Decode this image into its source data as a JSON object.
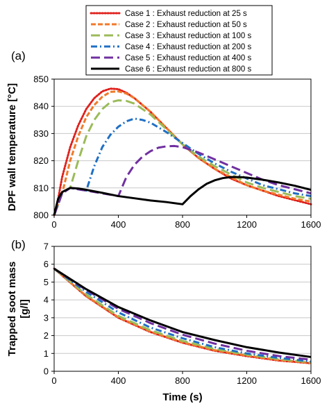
{
  "colors": {
    "case1": "#e0201b",
    "case2": "#f07a2a",
    "case3": "#9bbb59",
    "case4": "#1f6fc5",
    "case5": "#7030a0",
    "case6": "#000000",
    "grid": "#c8c8c8",
    "axis": "#000000"
  },
  "legend": [
    {
      "label": "Case 1 : Exhaust reduction at 25 s",
      "color": "#e0201b",
      "dash": "dotted"
    },
    {
      "label": "Case 2 : Exhaust reduction at 50 s",
      "color": "#f07a2a",
      "dash": "short-dash"
    },
    {
      "label": "Case 3 : Exhaust reduction at 100 s",
      "color": "#9bbb59",
      "dash": "long-dash"
    },
    {
      "label": "Case 4 : Exhaust reduction at 200 s",
      "color": "#1f6fc5",
      "dash": "dash-dot"
    },
    {
      "label": "Case 5 : Exhaust reduction at 400 s",
      "color": "#7030a0",
      "dash": "long-dash"
    },
    {
      "label": "Case 6 : Exhaust reduction at 800 s",
      "color": "#000000",
      "dash": "solid"
    }
  ],
  "chart_data": [
    {
      "type": "line",
      "panel_label": "(a)",
      "xlabel": "",
      "ylabel": "DPF wall temperature [°C]",
      "xlim": [
        0,
        1600
      ],
      "ylim": [
        800,
        850
      ],
      "x_ticks": [
        0,
        400,
        800,
        1200,
        1600
      ],
      "y_ticks": [
        800,
        810,
        820,
        830,
        840,
        850
      ],
      "grid": "horizontal",
      "legend_position": "top",
      "series": [
        {
          "name": "Case 1 : Exhaust reduction at 25 s",
          "x": [
            0,
            25,
            50,
            100,
            150,
            200,
            250,
            300,
            350,
            400,
            450,
            500,
            600,
            700,
            800,
            900,
            1000,
            1100,
            1200,
            1300,
            1400,
            1500,
            1600
          ],
          "y": [
            800,
            806,
            814,
            825,
            833,
            839,
            843,
            845.5,
            846.5,
            846.3,
            845,
            843,
            838,
            832,
            826,
            821,
            817,
            813.5,
            811,
            809,
            807,
            805.5,
            804
          ]
        },
        {
          "name": "Case 2 : Exhaust reduction at 50 s",
          "x": [
            0,
            50,
            100,
            150,
            200,
            250,
            300,
            350,
            400,
            450,
            500,
            600,
            700,
            800,
            900,
            1000,
            1100,
            1200,
            1300,
            1400,
            1500,
            1600
          ],
          "y": [
            800,
            808,
            820,
            829,
            836,
            840.5,
            843.5,
            845.3,
            845.5,
            844.7,
            843,
            838,
            832,
            826,
            821,
            817,
            814,
            811,
            809,
            807.5,
            806,
            805
          ]
        },
        {
          "name": "Case 3 : Exhaust reduction at 100 s",
          "x": [
            0,
            50,
            100,
            150,
            200,
            250,
            300,
            350,
            400,
            450,
            500,
            600,
            700,
            800,
            900,
            1000,
            1100,
            1200,
            1300,
            1400,
            1500,
            1600
          ],
          "y": [
            800,
            808,
            810,
            820,
            829,
            835,
            839,
            841.5,
            842.2,
            842,
            841,
            837,
            831.5,
            826,
            821.5,
            818,
            815,
            812,
            810,
            808.5,
            807,
            806
          ]
        },
        {
          "name": "Case 4 : Exhaust reduction at 200 s",
          "x": [
            0,
            50,
            100,
            150,
            200,
            250,
            300,
            350,
            400,
            450,
            500,
            550,
            600,
            700,
            800,
            900,
            1000,
            1100,
            1200,
            1300,
            1400,
            1500,
            1600
          ],
          "y": [
            800,
            808,
            810,
            809.5,
            809,
            818,
            825,
            829.5,
            832.5,
            834.5,
            835.5,
            835,
            834,
            830.5,
            826.5,
            822.5,
            819,
            816,
            813.5,
            811,
            809.5,
            808,
            807
          ]
        },
        {
          "name": "Case 5 : Exhaust reduction at 400 s",
          "x": [
            0,
            50,
            100,
            150,
            200,
            300,
            400,
            450,
            500,
            550,
            600,
            650,
            700,
            750,
            800,
            900,
            1000,
            1100,
            1200,
            1300,
            1400,
            1500,
            1600
          ],
          "y": [
            800,
            808,
            810,
            809.5,
            809,
            808,
            807,
            814,
            818.5,
            821.5,
            823.5,
            824.8,
            825.3,
            825.4,
            825,
            823,
            820.5,
            818,
            815.5,
            813,
            811,
            809.5,
            808
          ]
        },
        {
          "name": "Case 6 : Exhaust reduction at 800 s",
          "x": [
            0,
            25,
            50,
            100,
            150,
            200,
            300,
            400,
            500,
            600,
            700,
            800,
            850,
            900,
            950,
            1000,
            1050,
            1100,
            1150,
            1200,
            1300,
            1400,
            1500,
            1600
          ],
          "y": [
            800,
            806,
            808.5,
            810,
            809.8,
            809.3,
            808.2,
            807,
            806.2,
            805.4,
            804.8,
            804,
            807,
            809.5,
            811.5,
            812.8,
            813.6,
            814,
            814,
            813.8,
            813,
            812,
            810.8,
            809.3
          ]
        }
      ]
    },
    {
      "type": "line",
      "panel_label": "(b)",
      "xlabel": "Time (s)",
      "ylabel": "Trapped soot mass [g/l]",
      "xlim": [
        0,
        1600
      ],
      "ylim": [
        0,
        7
      ],
      "x_ticks": [
        0,
        400,
        800,
        1200,
        1600
      ],
      "y_ticks": [
        0,
        1,
        2,
        3,
        4,
        5,
        6,
        7
      ],
      "grid": "horizontal",
      "series": [
        {
          "name": "Case 1 : Exhaust reduction at 25 s",
          "x": [
            0,
            200,
            400,
            600,
            800,
            1000,
            1200,
            1400,
            1600
          ],
          "y": [
            5.75,
            4.2,
            3.0,
            2.2,
            1.6,
            1.15,
            0.85,
            0.6,
            0.45
          ]
        },
        {
          "name": "Case 2 : Exhaust reduction at 50 s",
          "x": [
            0,
            200,
            400,
            600,
            800,
            1000,
            1200,
            1400,
            1600
          ],
          "y": [
            5.75,
            4.22,
            3.03,
            2.23,
            1.63,
            1.18,
            0.88,
            0.63,
            0.47
          ]
        },
        {
          "name": "Case 3 : Exhaust reduction at 100 s",
          "x": [
            0,
            200,
            400,
            600,
            800,
            1000,
            1200,
            1400,
            1600
          ],
          "y": [
            5.75,
            4.3,
            3.1,
            2.3,
            1.7,
            1.25,
            0.93,
            0.68,
            0.5
          ]
        },
        {
          "name": "Case 4 : Exhaust reduction at 200 s",
          "x": [
            0,
            200,
            400,
            600,
            800,
            1000,
            1200,
            1400,
            1600
          ],
          "y": [
            5.75,
            4.45,
            3.3,
            2.45,
            1.85,
            1.35,
            1.0,
            0.75,
            0.55
          ]
        },
        {
          "name": "Case 5 : Exhaust reduction at 400 s",
          "x": [
            0,
            200,
            400,
            600,
            800,
            1000,
            1200,
            1400,
            1600
          ],
          "y": [
            5.75,
            4.55,
            3.5,
            2.7,
            2.05,
            1.55,
            1.15,
            0.85,
            0.65
          ]
        },
        {
          "name": "Case 6 : Exhaust reduction at 800 s",
          "x": [
            0,
            200,
            400,
            600,
            800,
            1000,
            1200,
            1400,
            1600
          ],
          "y": [
            5.75,
            4.6,
            3.6,
            2.85,
            2.2,
            1.75,
            1.35,
            1.05,
            0.8
          ]
        }
      ]
    }
  ]
}
